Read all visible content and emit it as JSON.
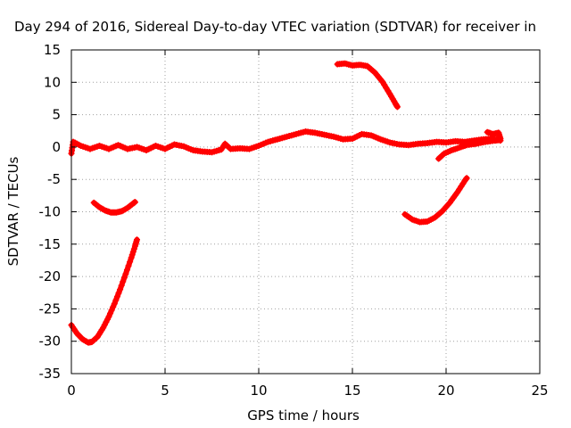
{
  "chart_data": {
    "type": "scatter",
    "title": "Day 294 of 2016, Sidereal Day-to-day VTEC variation (SDTVAR) for receiver in",
    "xlabel": "GPS time / hours",
    "ylabel": "SDTVAR / TECUs",
    "xlim": [
      0,
      25
    ],
    "ylim": [
      -35,
      15
    ],
    "xticks": [
      0,
      5,
      10,
      15,
      20,
      25
    ],
    "yticks": [
      -35,
      -30,
      -25,
      -20,
      -15,
      -10,
      -5,
      0,
      5,
      10,
      15
    ],
    "grid": true,
    "series": [
      {
        "name": "SDTVAR",
        "color": "#ff0000",
        "marker": "plus",
        "segments": [
          {
            "points": [
              [
                0.0,
                -1.0
              ],
              [
                0.1,
                0.8
              ],
              [
                0.5,
                0.2
              ],
              [
                1.0,
                -0.3
              ],
              [
                1.5,
                0.2
              ],
              [
                2.0,
                -0.3
              ],
              [
                2.5,
                0.3
              ],
              [
                3.0,
                -0.3
              ],
              [
                3.5,
                0.0
              ],
              [
                4.0,
                -0.5
              ],
              [
                4.5,
                0.2
              ],
              [
                5.0,
                -0.3
              ],
              [
                5.5,
                0.4
              ],
              [
                6.0,
                0.1
              ],
              [
                6.5,
                -0.5
              ],
              [
                7.0,
                -0.7
              ],
              [
                7.5,
                -0.8
              ],
              [
                8.0,
                -0.4
              ],
              [
                8.2,
                0.5
              ],
              [
                8.5,
                -0.3
              ],
              [
                9.0,
                -0.2
              ],
              [
                9.5,
                -0.3
              ],
              [
                10.0,
                0.2
              ],
              [
                10.5,
                0.8
              ],
              [
                11.0,
                1.2
              ],
              [
                11.5,
                1.6
              ],
              [
                12.0,
                2.0
              ],
              [
                12.5,
                2.4
              ],
              [
                13.0,
                2.2
              ],
              [
                13.5,
                1.9
              ],
              [
                14.0,
                1.6
              ],
              [
                14.5,
                1.2
              ],
              [
                15.0,
                1.3
              ],
              [
                15.5,
                2.0
              ],
              [
                16.0,
                1.8
              ],
              [
                16.5,
                1.2
              ],
              [
                17.0,
                0.7
              ],
              [
                17.5,
                0.4
              ],
              [
                18.0,
                0.3
              ],
              [
                18.5,
                0.5
              ],
              [
                19.0,
                0.6
              ],
              [
                19.5,
                0.8
              ],
              [
                20.0,
                0.7
              ],
              [
                20.5,
                0.9
              ],
              [
                21.0,
                0.8
              ],
              [
                21.5,
                1.0
              ],
              [
                22.0,
                1.2
              ],
              [
                22.5,
                1.3
              ],
              [
                22.9,
                1.0
              ]
            ]
          },
          {
            "points": [
              [
                22.2,
                2.3
              ],
              [
                22.5,
                2.0
              ],
              [
                22.8,
                2.2
              ],
              [
                22.9,
                1.3
              ]
            ]
          },
          {
            "points": [
              [
                1.2,
                -8.6
              ],
              [
                1.5,
                -9.3
              ],
              [
                1.8,
                -9.8
              ],
              [
                2.1,
                -10.1
              ],
              [
                2.4,
                -10.1
              ],
              [
                2.7,
                -9.9
              ],
              [
                3.0,
                -9.4
              ],
              [
                3.3,
                -8.7
              ],
              [
                3.4,
                -8.5
              ]
            ]
          },
          {
            "points": [
              [
                0.0,
                -27.5
              ],
              [
                0.3,
                -28.8
              ],
              [
                0.6,
                -29.7
              ],
              [
                0.9,
                -30.2
              ],
              [
                1.1,
                -30.1
              ],
              [
                1.4,
                -29.3
              ],
              [
                1.7,
                -27.9
              ],
              [
                2.0,
                -26.2
              ],
              [
                2.3,
                -24.2
              ],
              [
                2.6,
                -22.0
              ],
              [
                2.9,
                -19.6
              ],
              [
                3.2,
                -17.1
              ],
              [
                3.4,
                -15.3
              ],
              [
                3.5,
                -14.3
              ]
            ]
          },
          {
            "points": [
              [
                14.2,
                12.8
              ],
              [
                14.6,
                12.9
              ],
              [
                15.0,
                12.6
              ],
              [
                15.4,
                12.7
              ],
              [
                15.8,
                12.5
              ],
              [
                16.2,
                11.5
              ],
              [
                16.6,
                10.1
              ],
              [
                17.0,
                8.2
              ],
              [
                17.3,
                6.7
              ],
              [
                17.4,
                6.2
              ]
            ]
          },
          {
            "points": [
              [
                17.8,
                -10.4
              ],
              [
                18.2,
                -11.2
              ],
              [
                18.6,
                -11.6
              ],
              [
                19.0,
                -11.5
              ],
              [
                19.4,
                -10.9
              ],
              [
                19.8,
                -9.9
              ],
              [
                20.2,
                -8.6
              ],
              [
                20.6,
                -7.0
              ],
              [
                21.0,
                -5.2
              ],
              [
                21.1,
                -4.8
              ]
            ]
          },
          {
            "points": [
              [
                19.6,
                -1.8
              ],
              [
                19.9,
                -1.0
              ],
              [
                20.3,
                -0.5
              ],
              [
                20.7,
                -0.1
              ],
              [
                21.1,
                0.3
              ],
              [
                21.6,
                0.5
              ],
              [
                22.1,
                0.8
              ],
              [
                22.6,
                1.0
              ],
              [
                22.8,
                1.1
              ]
            ]
          }
        ]
      }
    ]
  }
}
